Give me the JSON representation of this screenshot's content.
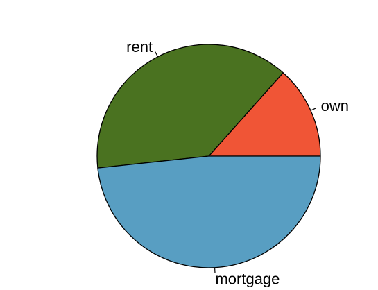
{
  "chart_data": {
    "type": "pie",
    "title": "",
    "slices": [
      {
        "label": "own",
        "value": 0.134,
        "color": "#F05536"
      },
      {
        "label": "rent",
        "value": 0.383,
        "color": "#4A7220"
      },
      {
        "label": "mortgage",
        "value": 0.483,
        "color": "#589EC2"
      }
    ],
    "start_angle_deg": 0,
    "direction": "counterclockwise",
    "legend": "none"
  }
}
